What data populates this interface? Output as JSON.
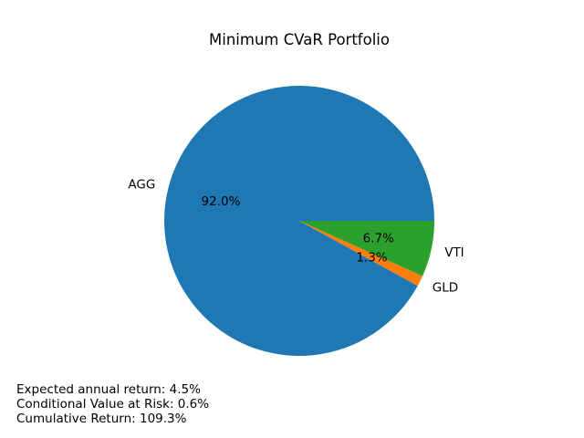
{
  "chart_data": {
    "type": "pie",
    "title": "Minimum CVaR Portfolio",
    "labels": [
      "AGG",
      "GLD",
      "VTI"
    ],
    "values": [
      92.0,
      1.3,
      6.7
    ],
    "pct_labels": [
      "92.0%",
      "1.3%",
      "6.7%"
    ],
    "colors": [
      "#1f77b4",
      "#ff7f0e",
      "#2ca02c"
    ],
    "start_angle_deg": 0,
    "direction": "counterclockwise"
  },
  "annotations": [
    "Expected annual return: 4.5%",
    "Conditional Value at Risk: 0.6%",
    "Cumulative Return: 109.3%"
  ]
}
